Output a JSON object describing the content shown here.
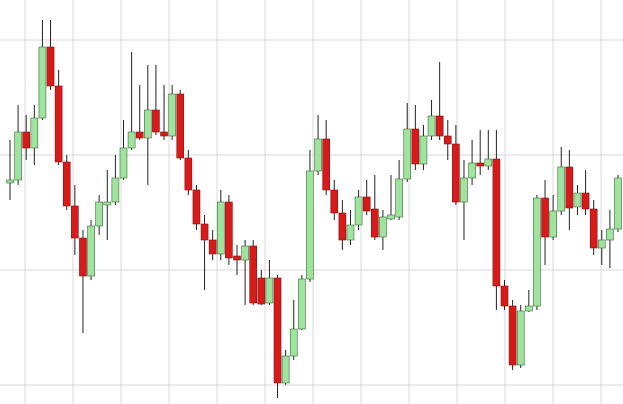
{
  "chart_data": {
    "type": "candlestick",
    "open": [
      221,
      224,
      272,
      256,
      286,
      357,
      318,
      242,
      198,
      166,
      128,
      178,
      199,
      202,
      226,
      256,
      272,
      266,
      294,
      272,
      268,
      310,
      246,
      214,
      180,
      164,
      150,
      202,
      148,
      144,
      158,
      126,
      101,
      126,
      21,
      48,
      75,
      125,
      233,
      265,
      214,
      191,
      164,
      179,
      207,
      195,
      167,
      185,
      187,
      225,
      275,
      240,
      268,
      288,
      268,
      260,
      202,
      226,
      241,
      238,
      245,
      118,
      98,
      39,
      93,
      98,
      206,
      167,
      193,
      237,
      197,
      211,
      195,
      156,
      164,
      175
    ],
    "high": [
      264,
      299,
      289,
      299,
      384,
      384,
      334,
      249,
      219,
      174,
      184,
      209,
      234,
      249,
      284,
      352,
      319,
      339,
      339,
      319,
      319,
      314,
      254,
      219,
      189,
      174,
      214,
      209,
      159,
      164,
      164,
      134,
      144,
      129,
      54,
      104,
      129,
      254,
      289,
      284,
      224,
      204,
      194,
      214,
      224,
      229,
      194,
      229,
      244,
      301,
      299,
      279,
      304,
      342,
      284,
      279,
      244,
      264,
      274,
      274,
      274,
      124,
      104,
      99,
      114,
      209,
      224,
      209,
      257,
      254,
      219,
      234,
      204,
      174,
      194,
      229
    ],
    "low": [
      204,
      219,
      244,
      239,
      284,
      314,
      239,
      194,
      149,
      71,
      124,
      169,
      164,
      199,
      224,
      254,
      264,
      219,
      269,
      264,
      264,
      244,
      209,
      174,
      114,
      144,
      144,
      139,
      129,
      99,
      99,
      99,
      99,
      6,
      19,
      44,
      74,
      122,
      229,
      209,
      184,
      154,
      159,
      174,
      189,
      164,
      154,
      184,
      184,
      222,
      234,
      234,
      264,
      264,
      244,
      199,
      164,
      219,
      229,
      234,
      94,
      94,
      34,
      36,
      92,
      94,
      139,
      164,
      189,
      174,
      189,
      189,
      149,
      139,
      136,
      172
    ],
    "close": [
      224,
      272,
      256,
      286,
      357,
      318,
      242,
      198,
      166,
      128,
      178,
      202,
      202,
      226,
      256,
      272,
      266,
      294,
      272,
      268,
      310,
      246,
      214,
      180,
      164,
      150,
      202,
      146,
      144,
      158,
      101,
      100,
      126,
      21,
      48,
      75,
      125,
      233,
      265,
      214,
      191,
      164,
      179,
      207,
      193,
      167,
      187,
      189,
      225,
      275,
      240,
      268,
      288,
      268,
      260,
      202,
      226,
      241,
      238,
      245,
      118,
      98,
      39,
      93,
      98,
      206,
      167,
      193,
      237,
      196,
      211,
      195,
      156,
      164,
      175,
      226
    ],
    "up_color": "#9fe39f",
    "down_color": "#d71a1a",
    "wick_color": "#222222",
    "ylim": [
      0,
      404
    ],
    "yticks": [
      19,
      134,
      249,
      364
    ],
    "grid": true
  }
}
